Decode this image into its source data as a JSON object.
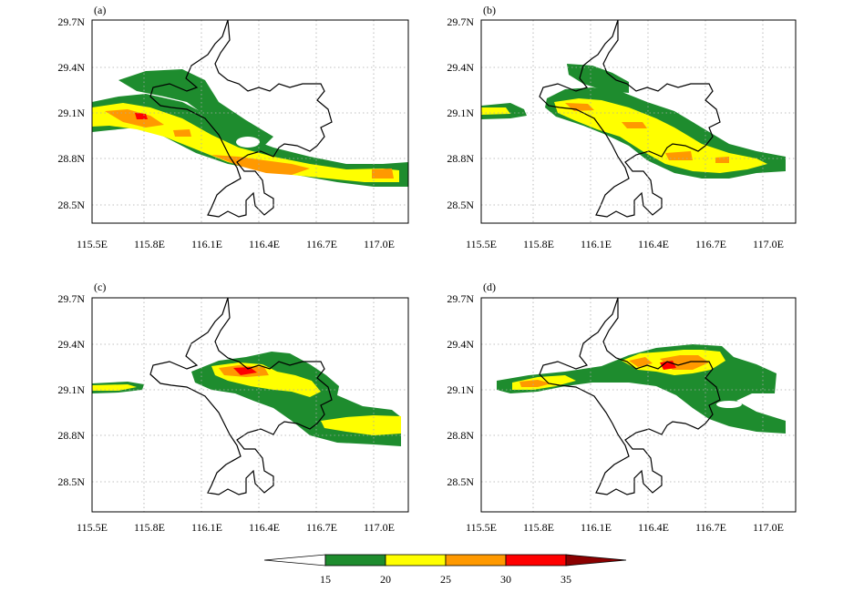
{
  "chart_data": {
    "type": "heatmap",
    "panels": [
      {
        "label": "(a)"
      },
      {
        "label": "(b)"
      },
      {
        "label": "(c)"
      },
      {
        "label": "(d)"
      }
    ],
    "x_ticks": [
      "115.5E",
      "115.8E",
      "116.1E",
      "116.4E",
      "116.7E",
      "117.0E"
    ],
    "y_ticks": [
      "29.7N",
      "29.4N",
      "29.1N",
      "28.8N",
      "28.5N"
    ],
    "x_values": [
      115.5,
      115.8,
      116.1,
      116.4,
      116.7,
      117.0
    ],
    "y_values": [
      29.7,
      29.4,
      29.1,
      28.8,
      28.5
    ],
    "xlim": [
      115.5,
      117.15
    ],
    "ylim": [
      28.35,
      29.7
    ],
    "grid": true,
    "colorbar": {
      "levels": [
        "15",
        "20",
        "25",
        "30",
        "35"
      ],
      "colors": [
        "#ffffff",
        "#1e8c2e",
        "#ffff00",
        "#ff9900",
        "#ff0000",
        "#8b0000"
      ]
    }
  }
}
